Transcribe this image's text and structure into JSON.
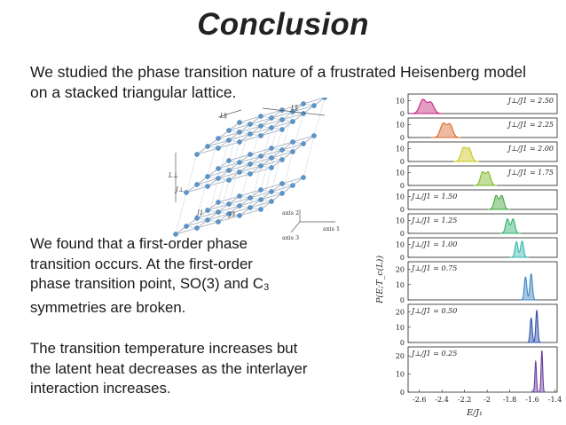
{
  "slide": {
    "title": "Conclusion",
    "intro": "We studied the phase transition nature of a frustrated Heisenberg model on a stacked triangular lattice.",
    "finding_1": "We found that a first-order phase transition occurs. At the first-order phase transition point, SO(3) and C",
    "finding_1_sub": "3",
    "finding_1_end": " symmetries are broken.",
    "finding_2": "The transition temperature increases but the latent heat decreases as the interlayer interaction increases."
  },
  "lattice_figure": {
    "labels": {
      "L_par_top": "L∥",
      "L_par_right": "L∥",
      "L_perp": "L⊥",
      "J_perp": "J⊥",
      "J1": "J1",
      "J3": "J3",
      "axis1": "axis 1",
      "axis2": "axis 2",
      "axis3": "axis 3"
    },
    "colors": {
      "node": "#5b95c9",
      "bond": "#9aa8b8"
    }
  },
  "chart_data": {
    "type": "area",
    "xlabel": "E/J₁",
    "ylabel": "P(E;T_c(L))",
    "x_ticks": [
      "-2.6",
      "-2.4",
      "-2.2",
      "-2",
      "-1.8",
      "-1.6",
      "-1.4"
    ],
    "xlim": [
      -2.7,
      -1.38
    ],
    "panels": [
      {
        "label": "J⊥/J1 = 2.50",
        "color": "#c2237d",
        "y_ticks": [
          "0",
          "10"
        ],
        "ymax": 15,
        "peaks": [
          {
            "x": -2.57,
            "y": 10.5,
            "w": 0.028
          },
          {
            "x": -2.5,
            "y": 8.5,
            "w": 0.028
          }
        ]
      },
      {
        "label": "J⊥/J1 = 2.25",
        "color": "#d9692c",
        "y_ticks": [
          "0",
          "10"
        ],
        "ymax": 15,
        "peaks": [
          {
            "x": -2.39,
            "y": 10.5,
            "w": 0.025
          },
          {
            "x": -2.33,
            "y": 10,
            "w": 0.025
          }
        ]
      },
      {
        "label": "J⊥/J1 = 2.00",
        "color": "#c8c51a",
        "y_ticks": [
          "0",
          "10"
        ],
        "ymax": 15,
        "peaks": [
          {
            "x": -2.21,
            "y": 10,
            "w": 0.022
          },
          {
            "x": -2.16,
            "y": 9.5,
            "w": 0.022
          }
        ]
      },
      {
        "label": "J⊥/J1 = 1.75",
        "color": "#7cb825",
        "y_ticks": [
          "0",
          "10"
        ],
        "ymax": 15,
        "peaks": [
          {
            "x": -2.04,
            "y": 10,
            "w": 0.02
          },
          {
            "x": -1.99,
            "y": 10,
            "w": 0.02
          }
        ]
      },
      {
        "label": "J⊥/J1 = 1.50",
        "color": "#3ea63a",
        "y_ticks": [
          "0",
          "10"
        ],
        "ymax": 15,
        "peaks": [
          {
            "x": -1.92,
            "y": 10.5,
            "w": 0.018
          },
          {
            "x": -1.87,
            "y": 10.5,
            "w": 0.018
          }
        ]
      },
      {
        "label": "J⊥/J1 = 1.25",
        "color": "#2fb06c",
        "y_ticks": [
          "0",
          "10"
        ],
        "ymax": 15,
        "peaks": [
          {
            "x": -1.82,
            "y": 11,
            "w": 0.016
          },
          {
            "x": -1.77,
            "y": 11,
            "w": 0.016
          }
        ]
      },
      {
        "label": "J⊥/J1 = 1.00",
        "color": "#36b7ad",
        "y_ticks": [
          "0",
          "10"
        ],
        "ymax": 15,
        "peaks": [
          {
            "x": -1.74,
            "y": 12,
            "w": 0.013
          },
          {
            "x": -1.69,
            "y": 12.5,
            "w": 0.013
          }
        ]
      },
      {
        "label": "J⊥/J1 = 0.75",
        "color": "#3b86c6",
        "y_ticks": [
          "0",
          "10",
          "20"
        ],
        "ymax": 25,
        "peaks": [
          {
            "x": -1.66,
            "y": 15,
            "w": 0.011
          },
          {
            "x": -1.61,
            "y": 17,
            "w": 0.011
          }
        ]
      },
      {
        "label": "J⊥/J1 = 0.50",
        "color": "#2f51a8",
        "y_ticks": [
          "0",
          "10",
          "20"
        ],
        "ymax": 25,
        "peaks": [
          {
            "x": -1.61,
            "y": 16,
            "w": 0.009
          },
          {
            "x": -1.56,
            "y": 21,
            "w": 0.009
          }
        ]
      },
      {
        "label": "J⊥/J1 = 0.25",
        "color": "#6a3f9c",
        "y_ticks": [
          "0",
          "10",
          "20"
        ],
        "ymax": 25,
        "peaks": [
          {
            "x": -1.57,
            "y": 17,
            "w": 0.007
          },
          {
            "x": -1.515,
            "y": 23,
            "w": 0.007
          }
        ]
      }
    ]
  }
}
